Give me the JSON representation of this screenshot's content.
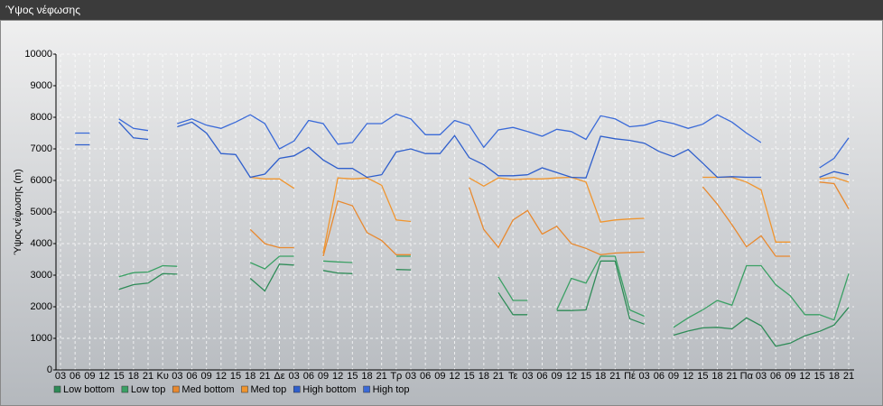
{
  "chart_data": {
    "type": "line",
    "title": "Ύψος νέφωσης",
    "y_label": "Ύψος νέφωσης (m)",
    "categories": [
      "03",
      "06",
      "09",
      "12",
      "15",
      "18",
      "21",
      "Κυ",
      "03",
      "06",
      "09",
      "12",
      "15",
      "18",
      "21",
      "Δε",
      "03",
      "06",
      "09",
      "12",
      "15",
      "18",
      "21",
      "Τρ",
      "03",
      "06",
      "09",
      "12",
      "15",
      "18",
      "21",
      "Τε",
      "03",
      "06",
      "09",
      "12",
      "15",
      "18",
      "21",
      "Πέ",
      "03",
      "06",
      "09",
      "12",
      "15",
      "18",
      "21",
      "Πα",
      "03",
      "06",
      "09",
      "12",
      "15",
      "18",
      "21"
    ],
    "series": [
      {
        "name": "Low bottom",
        "color": "#2e8b57",
        "values": [
          null,
          null,
          null,
          null,
          2550,
          2700,
          2750,
          3050,
          3030,
          null,
          null,
          null,
          null,
          2900,
          2500,
          3350,
          3320,
          null,
          3150,
          3070,
          3050,
          null,
          null,
          3180,
          3170,
          null,
          null,
          null,
          null,
          null,
          2450,
          1750,
          1750,
          null,
          1880,
          1880,
          1900,
          3450,
          3450,
          1620,
          1450,
          null,
          1100,
          1230,
          1330,
          1350,
          1300,
          1650,
          1400,
          750,
          850,
          1080,
          1220,
          1420,
          1980
        ]
      },
      {
        "name": "Low top",
        "color": "#3aa064",
        "values": [
          null,
          null,
          null,
          null,
          2950,
          3080,
          3100,
          3300,
          3280,
          null,
          null,
          null,
          null,
          3400,
          3200,
          3600,
          3600,
          null,
          3450,
          3420,
          3400,
          null,
          null,
          3600,
          3600,
          null,
          null,
          null,
          null,
          null,
          2950,
          2200,
          2200,
          null,
          1900,
          2900,
          2750,
          3600,
          3600,
          1900,
          1700,
          null,
          1350,
          1650,
          1900,
          2200,
          2050,
          3300,
          3300,
          2700,
          2350,
          1750,
          1750,
          1580,
          3050
        ]
      },
      {
        "name": "Med bottom",
        "color": "#e8892f",
        "values": [
          null,
          null,
          null,
          null,
          null,
          null,
          null,
          null,
          null,
          null,
          null,
          null,
          null,
          4450,
          4000,
          3870,
          3870,
          null,
          3600,
          5350,
          5200,
          4350,
          4100,
          3650,
          3650,
          null,
          null,
          null,
          5780,
          4450,
          3880,
          4750,
          5050,
          4300,
          4550,
          4000,
          3850,
          3650,
          3700,
          3720,
          3730,
          null,
          null,
          null,
          5800,
          5250,
          4600,
          3900,
          4250,
          3600,
          3600,
          null,
          5950,
          5900,
          5100
        ]
      },
      {
        "name": "Med top",
        "color": "#f0952e",
        "values": [
          null,
          null,
          null,
          null,
          null,
          null,
          null,
          null,
          null,
          null,
          null,
          null,
          null,
          6100,
          6050,
          6050,
          5750,
          null,
          3700,
          6080,
          6050,
          6080,
          5850,
          4750,
          4700,
          null,
          null,
          null,
          6080,
          5820,
          6080,
          6030,
          6050,
          6050,
          6080,
          6100,
          5950,
          4680,
          4750,
          4780,
          4800,
          null,
          null,
          null,
          6100,
          6100,
          6100,
          5950,
          5700,
          4050,
          4050,
          null,
          6050,
          6100,
          5950
        ]
      },
      {
        "name": "High bottom",
        "color": "#2f5fcc",
        "values": [
          null,
          7130,
          7130,
          null,
          7850,
          7350,
          7300,
          null,
          7700,
          7850,
          7500,
          6850,
          6820,
          6100,
          6200,
          6700,
          6780,
          7050,
          6650,
          6380,
          6380,
          6100,
          6180,
          6900,
          7000,
          6850,
          6850,
          7420,
          6720,
          6500,
          6150,
          6150,
          6180,
          6400,
          6250,
          6100,
          6080,
          7400,
          7320,
          7270,
          7180,
          6920,
          6750,
          6980,
          6550,
          6100,
          6120,
          6100,
          6100,
          null,
          null,
          null,
          6100,
          6280,
          6180
        ]
      },
      {
        "name": "High top",
        "color": "#3a6ad8",
        "values": [
          null,
          7500,
          7500,
          null,
          7950,
          7650,
          7580,
          null,
          7800,
          7950,
          7750,
          7650,
          7850,
          8080,
          7800,
          7000,
          7250,
          7900,
          7800,
          7150,
          7200,
          7800,
          7800,
          8100,
          7950,
          7450,
          7450,
          7900,
          7750,
          7050,
          7600,
          7680,
          7550,
          7400,
          7620,
          7550,
          7300,
          8050,
          7950,
          7700,
          7750,
          7900,
          7800,
          7650,
          7780,
          8080,
          7850,
          7500,
          7200,
          null,
          null,
          null,
          6400,
          6700,
          7350
        ]
      }
    ],
    "ylim": [
      0,
      10000
    ],
    "yticks": [
      0,
      1000,
      2000,
      3000,
      4000,
      5000,
      6000,
      7000,
      8000,
      9000,
      10000
    ],
    "grid": true
  }
}
